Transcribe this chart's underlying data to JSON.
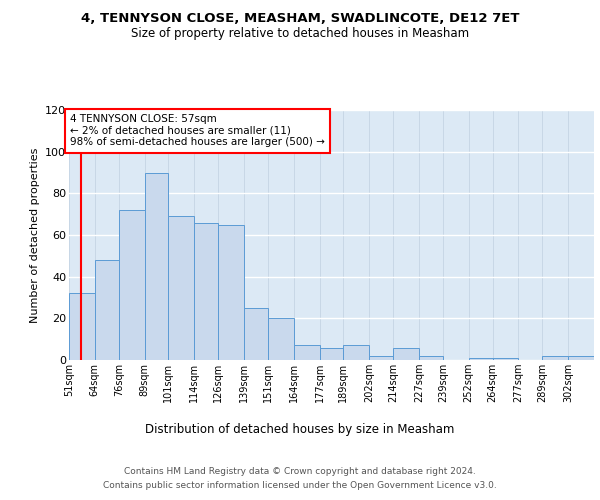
{
  "title1": "4, TENNYSON CLOSE, MEASHAM, SWADLINCOTE, DE12 7ET",
  "title2": "Size of property relative to detached houses in Measham",
  "xlabel": "Distribution of detached houses by size in Measham",
  "ylabel": "Number of detached properties",
  "annotation_lines": [
    "4 TENNYSON CLOSE: 57sqm",
    "← 2% of detached houses are smaller (11)",
    "98% of semi-detached houses are larger (500) →"
  ],
  "bar_edges": [
    51,
    64,
    76,
    89,
    101,
    114,
    126,
    139,
    151,
    164,
    177,
    189,
    202,
    214,
    227,
    239,
    252,
    264,
    277,
    289,
    302
  ],
  "bar_heights": [
    32,
    48,
    72,
    90,
    69,
    66,
    65,
    25,
    20,
    7,
    6,
    7,
    2,
    6,
    2,
    0,
    1,
    1,
    0,
    2,
    2
  ],
  "bar_color": "#c9d9ed",
  "bar_edge_color": "#5b9bd5",
  "red_line_x": 57,
  "ylim": [
    0,
    120
  ],
  "yticks": [
    0,
    20,
    40,
    60,
    80,
    100,
    120
  ],
  "background_color": "#dce9f5",
  "grid_color": "#c8d8e8",
  "footnote1": "Contains HM Land Registry data © Crown copyright and database right 2024.",
  "footnote2": "Contains public sector information licensed under the Open Government Licence v3.0."
}
